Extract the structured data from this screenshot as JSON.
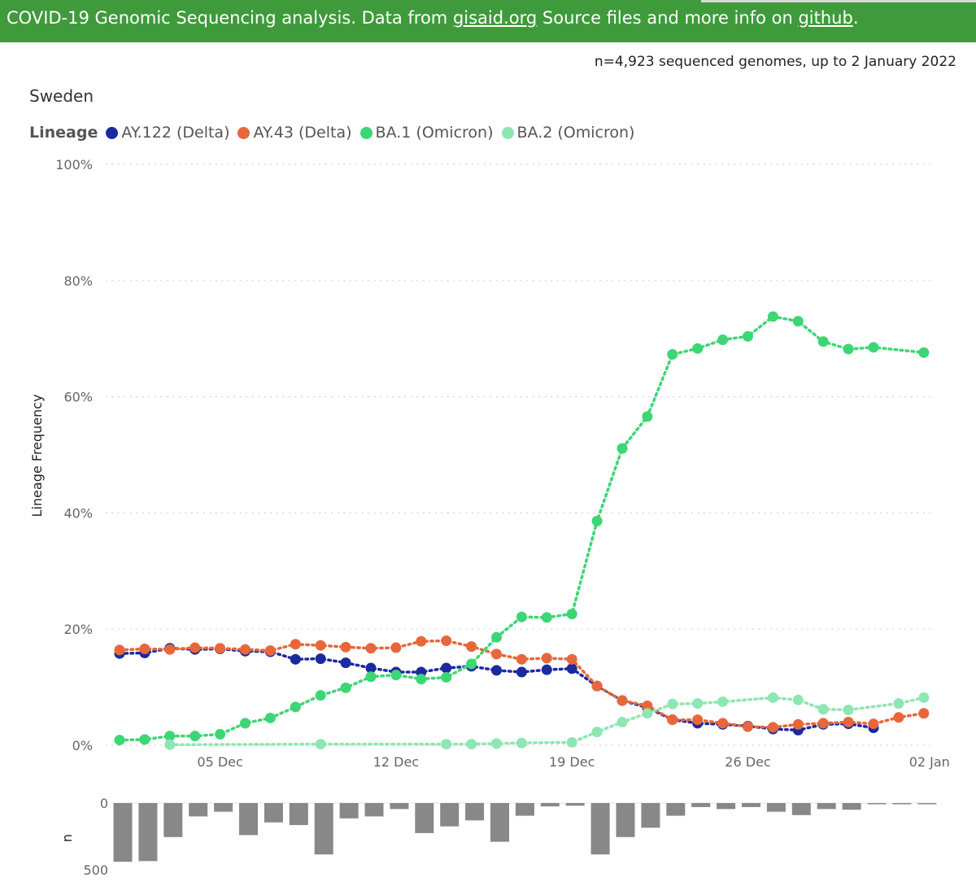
{
  "banner": {
    "text_before": "COVID-19 Genomic Sequencing analysis. Data from ",
    "link1": "gisaid.org",
    "text_middle": " Source files and more info on ",
    "link2": "github",
    "text_after": "."
  },
  "subtitle": "n=4,923 sequenced genomes, up to 2 January 2022",
  "country": "Sweden",
  "legend_title": "Lineage",
  "colors": {
    "banner": "#3f9a3c",
    "bars": "#888888"
  },
  "chart_data": [
    {
      "type": "line",
      "ylabel": "Lineage Frequency",
      "xlabel": "",
      "x": [
        "2021-12-01",
        "2021-12-02",
        "2021-12-03",
        "2021-12-04",
        "2021-12-05",
        "2021-12-06",
        "2021-12-07",
        "2021-12-08",
        "2021-12-09",
        "2021-12-10",
        "2021-12-11",
        "2021-12-12",
        "2021-12-13",
        "2021-12-14",
        "2021-12-15",
        "2021-12-16",
        "2021-12-17",
        "2021-12-18",
        "2021-12-19",
        "2021-12-20",
        "2021-12-21",
        "2021-12-22",
        "2021-12-23",
        "2021-12-24",
        "2021-12-25",
        "2021-12-26",
        "2021-12-27",
        "2021-12-28",
        "2021-12-29",
        "2021-12-30",
        "2021-12-31",
        "2022-01-01",
        "2022-01-02"
      ],
      "x_ticks": [
        {
          "date": "2021-12-05",
          "label": "05 Dec"
        },
        {
          "date": "2021-12-12",
          "label": "12 Dec"
        },
        {
          "date": "2021-12-19",
          "label": "19 Dec"
        },
        {
          "date": "2021-12-26",
          "label": "26 Dec"
        },
        {
          "date": "2022-01-02",
          "label": "02 Jan"
        }
      ],
      "y_ticks": [
        0,
        20,
        40,
        60,
        80,
        100
      ],
      "y_tick_labels": [
        "0%",
        "20%",
        "40%",
        "60%",
        "80%",
        "100%"
      ],
      "ylim": [
        0,
        100
      ],
      "grid": true,
      "legend_position": "top-left",
      "series": [
        {
          "name": "AY.122 (Delta)",
          "color": "#1c2aa0",
          "values": [
            15.8,
            15.9,
            16.7,
            16.5,
            16.6,
            16.2,
            16.1,
            14.8,
            14.9,
            14.2,
            13.3,
            12.6,
            12.6,
            13.3,
            13.6,
            12.9,
            12.6,
            13.0,
            13.2,
            10.2,
            7.7,
            6.5,
            4.4,
            3.8,
            3.6,
            3.3,
            2.8,
            2.6,
            3.6,
            3.7,
            3.0,
            null,
            null
          ]
        },
        {
          "name": "AY.43 (Delta)",
          "color": "#e8673a",
          "values": [
            16.4,
            16.6,
            16.5,
            16.8,
            16.7,
            16.5,
            16.3,
            17.4,
            17.2,
            16.9,
            16.7,
            16.8,
            17.9,
            18.0,
            17.0,
            15.7,
            14.8,
            15.0,
            14.8,
            10.2,
            7.7,
            6.8,
            4.4,
            4.4,
            3.8,
            3.2,
            3.1,
            3.6,
            3.8,
            4.0,
            3.7,
            4.8,
            5.5
          ]
        },
        {
          "name": "BA.1 (Omicron)",
          "color": "#3dd675",
          "values": [
            0.9,
            1.0,
            1.6,
            1.6,
            1.9,
            3.8,
            4.7,
            6.6,
            8.6,
            9.9,
            11.8,
            12.1,
            11.4,
            11.7,
            14.0,
            18.6,
            22.1,
            22.0,
            22.6,
            38.6,
            51.1,
            56.6,
            67.3,
            68.3,
            69.8,
            70.4,
            73.8,
            73.0,
            69.5,
            68.2,
            68.5,
            null,
            67.6
          ]
        },
        {
          "name": "BA.2 (Omicron)",
          "color": "#8ee6b2",
          "values": [
            null,
            null,
            0.1,
            null,
            null,
            null,
            null,
            null,
            0.2,
            null,
            null,
            null,
            null,
            0.2,
            0.2,
            0.3,
            0.4,
            null,
            0.5,
            2.3,
            4.0,
            5.5,
            7.1,
            7.2,
            7.5,
            null,
            8.2,
            7.8,
            6.2,
            6.1,
            null,
            7.2,
            8.2
          ]
        }
      ]
    },
    {
      "type": "bar",
      "ylabel": "n",
      "ylim": [
        0,
        500
      ],
      "y_ticks": [
        0,
        500
      ],
      "y_tick_labels": [
        "0",
        "500"
      ],
      "inverted": true,
      "x": [
        "2021-12-01",
        "2021-12-02",
        "2021-12-03",
        "2021-12-04",
        "2021-12-05",
        "2021-12-06",
        "2021-12-07",
        "2021-12-08",
        "2021-12-09",
        "2021-12-10",
        "2021-12-11",
        "2021-12-12",
        "2021-12-13",
        "2021-12-14",
        "2021-12-15",
        "2021-12-16",
        "2021-12-17",
        "2021-12-18",
        "2021-12-19",
        "2021-12-20",
        "2021-12-21",
        "2021-12-22",
        "2021-12-23",
        "2021-12-24",
        "2021-12-25",
        "2021-12-26",
        "2021-12-27",
        "2021-12-28",
        "2021-12-29",
        "2021-12-30",
        "2021-12-31",
        "2022-01-01",
        "2022-01-02"
      ],
      "values": [
        440,
        435,
        255,
        100,
        65,
        240,
        145,
        165,
        385,
        115,
        100,
        45,
        225,
        175,
        130,
        290,
        95,
        25,
        20,
        385,
        255,
        185,
        95,
        30,
        45,
        30,
        65,
        90,
        45,
        50,
        8,
        8,
        8
      ]
    }
  ]
}
